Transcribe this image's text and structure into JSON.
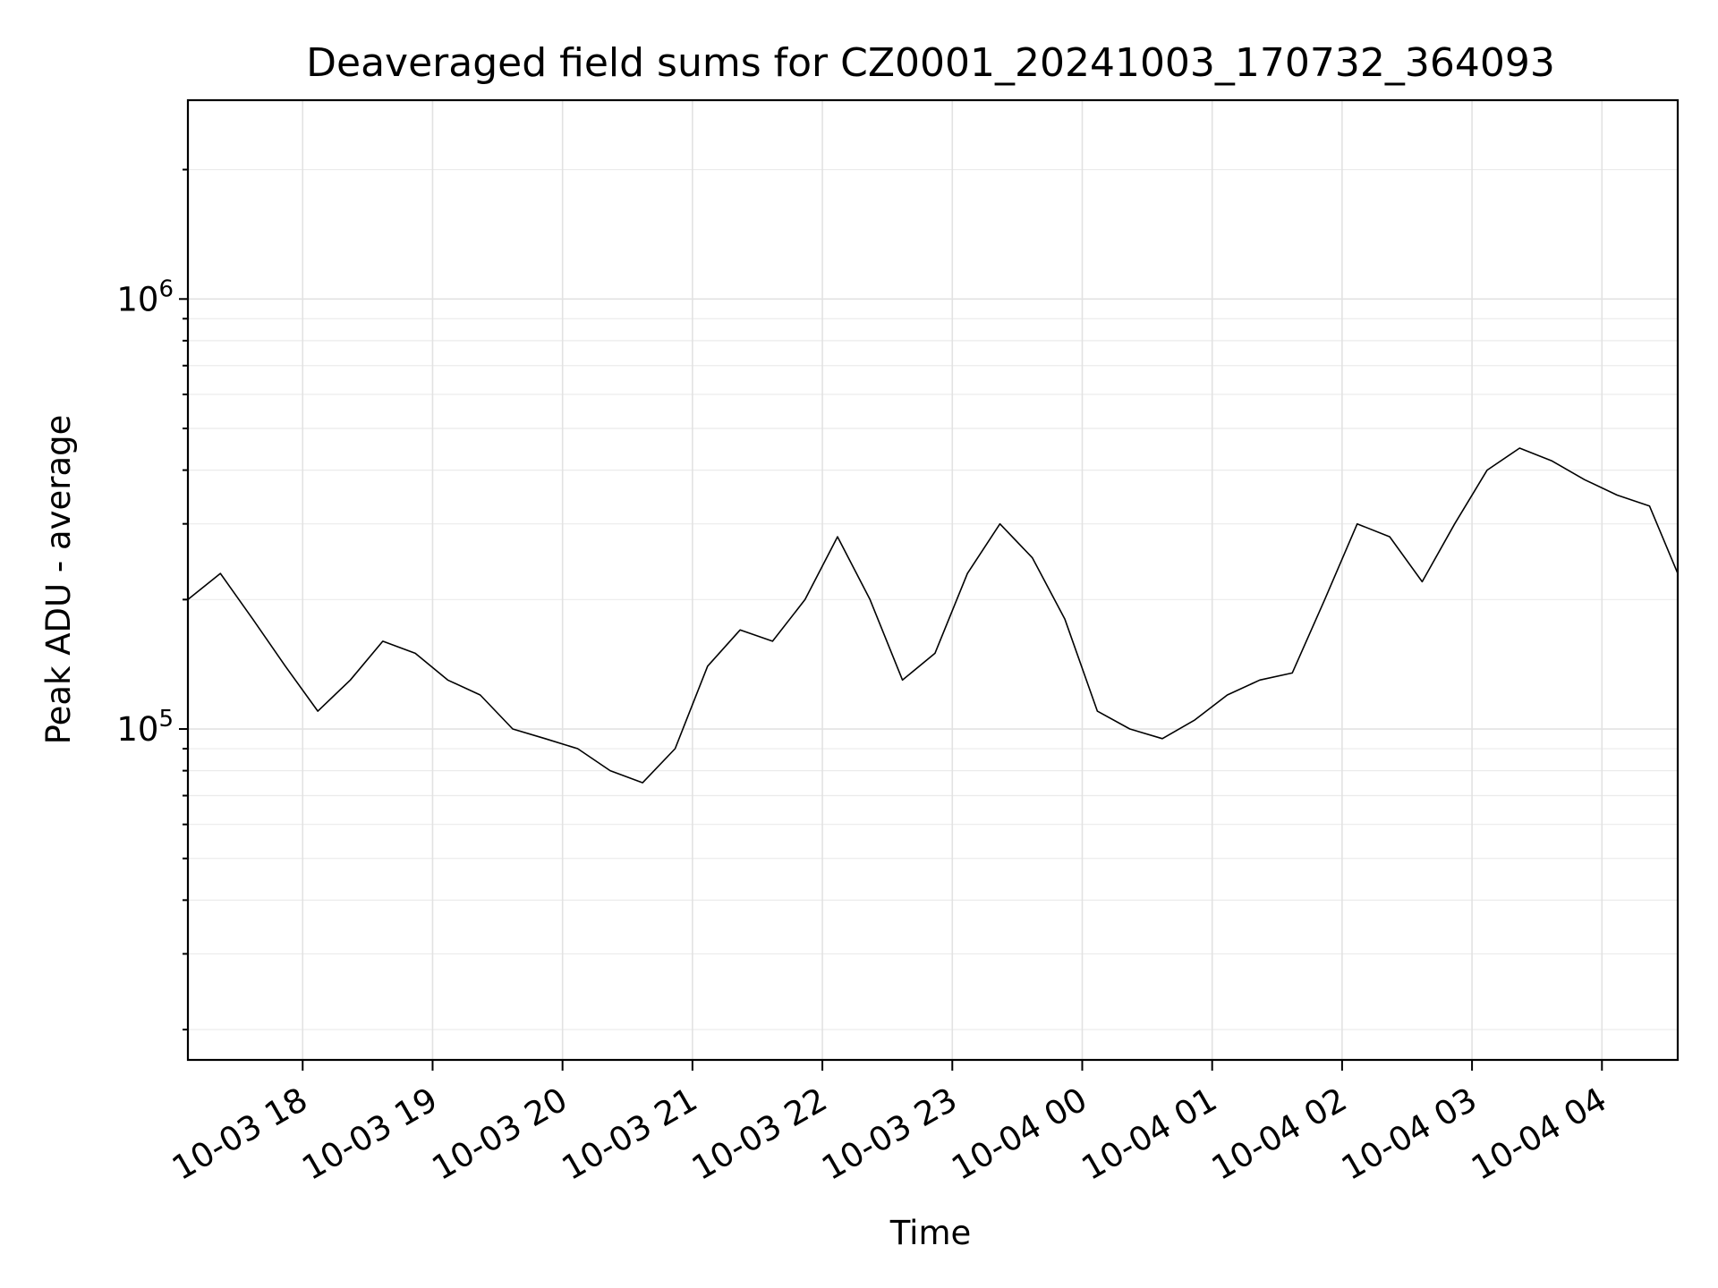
{
  "chart_data": {
    "type": "line",
    "title": "Deaveraged field sums for CZ0001_20241003_170732_364093",
    "xlabel": "Time",
    "ylabel": "Peak ADU - average",
    "x_ticks": [
      "10-03 18",
      "10-03 19",
      "10-03 20",
      "10-03 21",
      "10-03 22",
      "10-03 23",
      "10-04 00",
      "10-04 01",
      "10-04 02",
      "10-04 03",
      "10-04 04"
    ],
    "xlim": [
      "2024-10-03 17:07",
      "2024-10-04 04:35"
    ],
    "y_scale": "log",
    "ylim": [
      17000,
      2900000
    ],
    "y_ticks": [
      {
        "base": "10",
        "exp": "5",
        "value": 100000
      },
      {
        "base": "10",
        "exp": "6",
        "value": 1000000
      }
    ],
    "grid": true,
    "line_color": "#000000",
    "series": [
      {
        "x": [
          "2024-10-03 17:07",
          "2024-10-03 17:22",
          "2024-10-03 17:37",
          "2024-10-03 17:52",
          "2024-10-03 18:07",
          "2024-10-03 18:22",
          "2024-10-03 18:37",
          "2024-10-03 18:52",
          "2024-10-03 19:07",
          "2024-10-03 19:22",
          "2024-10-03 19:37",
          "2024-10-03 19:52",
          "2024-10-03 20:07",
          "2024-10-03 20:22",
          "2024-10-03 20:37",
          "2024-10-03 20:52",
          "2024-10-03 21:07",
          "2024-10-03 21:22",
          "2024-10-03 21:37",
          "2024-10-03 21:52",
          "2024-10-03 22:07",
          "2024-10-03 22:22",
          "2024-10-03 22:37",
          "2024-10-03 22:52",
          "2024-10-03 23:07",
          "2024-10-03 23:22",
          "2024-10-03 23:37",
          "2024-10-03 23:52",
          "2024-10-04 00:07",
          "2024-10-04 00:22",
          "2024-10-04 00:37",
          "2024-10-04 00:52",
          "2024-10-04 01:07",
          "2024-10-04 01:22",
          "2024-10-04 01:37",
          "2024-10-04 01:52",
          "2024-10-04 02:07",
          "2024-10-04 02:22",
          "2024-10-04 02:37",
          "2024-10-04 02:52",
          "2024-10-04 03:07",
          "2024-10-04 03:22",
          "2024-10-04 03:37",
          "2024-10-04 03:52",
          "2024-10-04 04:07",
          "2024-10-04 04:22",
          "2024-10-04 04:35"
        ],
        "values": [
          200000,
          230000,
          180000,
          140000,
          110000,
          130000,
          160000,
          150000,
          130000,
          120000,
          100000,
          95000,
          90000,
          80000,
          75000,
          90000,
          140000,
          170000,
          160000,
          200000,
          280000,
          200000,
          130000,
          150000,
          230000,
          300000,
          250000,
          180000,
          110000,
          100000,
          95000,
          105000,
          120000,
          130000,
          135000,
          200000,
          300000,
          280000,
          220000,
          300000,
          400000,
          450000,
          420000,
          380000,
          350000,
          330000,
          230000
        ]
      }
    ]
  }
}
